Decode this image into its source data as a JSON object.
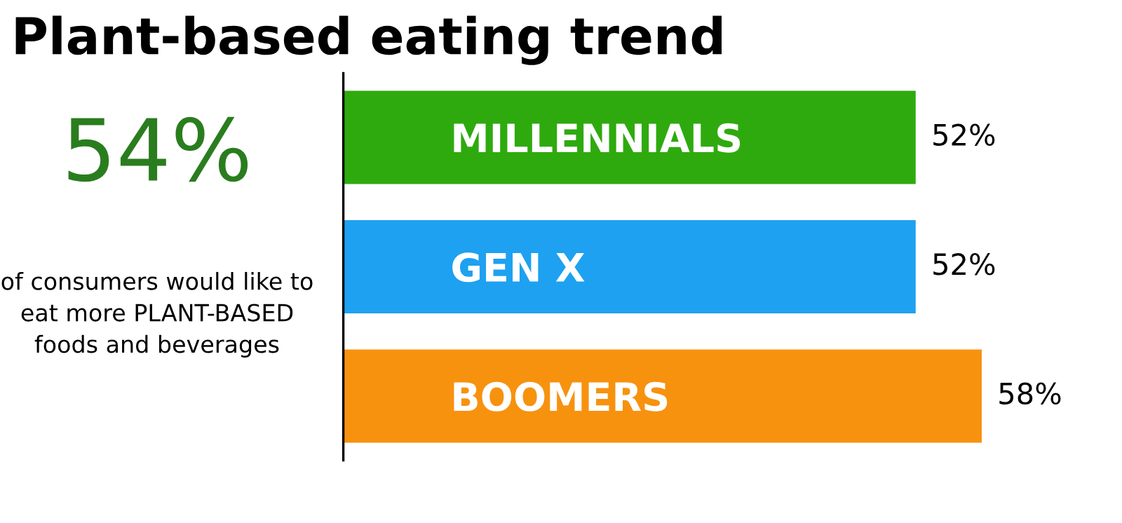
{
  "chart_data": {
    "type": "bar",
    "orientation": "horizontal",
    "title": "Plant-based eating trend",
    "categories": [
      "MILLENNIALS",
      "GEN X",
      "BOOMERS"
    ],
    "values": [
      52,
      52,
      58
    ],
    "colors": [
      "#2eaa0e",
      "#1ea1f0",
      "#f7920f"
    ],
    "value_labels": [
      "52%",
      "52%",
      "58%"
    ],
    "tick_labels": "y",
    "annotations": [
      "54%",
      "of consumers would like to eat more PLANT-BASED foods and beverages"
    ]
  }
}
